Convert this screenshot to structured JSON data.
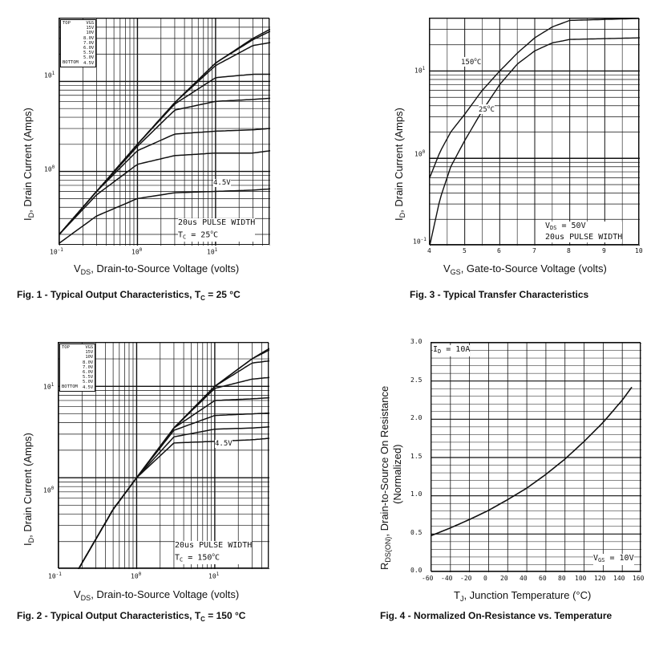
{
  "figures": {
    "fig1": {
      "caption_pre": "Fig. 1 - Typical Output Characteristics, T",
      "caption_sub": "C",
      "caption_post": " = 25 °C",
      "x_label_pre": "V",
      "x_label_sub": "DS",
      "x_label_post": ", Drain-to-Source Voltage (volts)",
      "y_label_pre": "I",
      "y_label_sub": "D",
      "y_label_post": ", Drain Current (Amps)",
      "pulse_note": "20us PULSE WIDTH",
      "tc_pre": "T",
      "tc_sub": "C",
      "tc_post": " = 25",
      "tc_sup": "o",
      "tc_unit": "C",
      "curve_label": "4.5V"
    },
    "fig2": {
      "caption_pre": "Fig. 2 - Typical Output Characteristics, T",
      "caption_sub": "C",
      "caption_post": " = 150 °C",
      "x_label_pre": "V",
      "x_label_sub": "DS",
      "x_label_post": ", Drain-to-Source Voltage (volts)",
      "y_label_pre": "I",
      "y_label_sub": "D",
      "y_label_post": ", Drain Current (Amps)",
      "pulse_note": "20us PULSE WIDTH",
      "tc_pre": "T",
      "tc_sub": "C",
      "tc_post": " = 150",
      "tc_sup": "o",
      "tc_unit": "C",
      "curve_label": "4.5V"
    },
    "fig3": {
      "caption": "Fig. 3 - Typical Transfer Characteristics",
      "x_label_pre": "V",
      "x_label_sub": "GS",
      "x_label_post": ", Gate-to-Source Voltage (volts)",
      "y_label_pre": "I",
      "y_label_sub": "D",
      "y_label_post": ", Drain Current (Amps)",
      "vds_pre": "V",
      "vds_sub": "DS",
      "vds_post": " = 50V",
      "pulse_note": "20us PULSE WIDTH",
      "label_150_pre": "150",
      "label_150_sup": "o",
      "label_150_unit": "C",
      "label_25_pre": "25",
      "label_25_sup": "o",
      "label_25_unit": "C"
    },
    "fig4": {
      "caption": "Fig. 4 - Normalized On-Resistance vs. Temperature",
      "x_label_pre": "T",
      "x_label_sub": "J",
      "x_label_post": ", Junction Temperature (°C)",
      "y_label_pre": "R",
      "y_label_sub": "DS(ON)",
      "y_label_post": ", Drain-to-Source On Resistance",
      "y_label_line2": "(Normalized)",
      "id_pre": "I",
      "id_sub": "D",
      "id_post": " = 10A",
      "vgs_pre": "V",
      "vgs_sub": "GS",
      "vgs_post": " = 10V"
    }
  },
  "legend": {
    "header": "VGS",
    "top": "TOP",
    "bottom": "BOTTOM",
    "values": [
      "15V",
      "10V",
      "8.0V",
      "7.0V",
      "6.0V",
      "5.5V",
      "5.0V",
      "4.5V"
    ]
  },
  "ticks": {
    "log_x": [
      {
        "base": "10",
        "exp": "-1"
      },
      {
        "base": "10",
        "exp": "0"
      },
      {
        "base": "10",
        "exp": "1"
      }
    ],
    "log_y": [
      {
        "base": "10",
        "exp": "0"
      },
      {
        "base": "10",
        "exp": "1"
      }
    ],
    "fig3_y": [
      {
        "base": "10",
        "exp": "-1"
      },
      {
        "base": "10",
        "exp": "0"
      },
      {
        "base": "10",
        "exp": "1"
      }
    ],
    "fig3_x": [
      "4",
      "5",
      "6",
      "7",
      "8",
      "9",
      "10"
    ],
    "fig4_x": [
      "-60",
      "-40",
      "-20",
      "0",
      "20",
      "40",
      "60",
      "80",
      "100",
      "120",
      "140",
      "160"
    ],
    "fig4_y": [
      "0.0",
      "0.5",
      "1.0",
      "1.5",
      "2.0",
      "2.5",
      "3.0"
    ]
  },
  "chart_data": [
    {
      "type": "line",
      "title": "Fig. 1 - Typical Output Characteristics, TC = 25 °C",
      "xlabel": "VDS, Drain-to-Source Voltage (volts)",
      "ylabel": "ID, Drain Current (Amps)",
      "xscale": "log",
      "yscale": "log",
      "xlim": [
        0.1,
        50
      ],
      "ylim": [
        0.15,
        50
      ],
      "series": [
        {
          "name": "15V",
          "x": [
            0.1,
            0.3,
            1,
            3,
            10,
            30,
            50
          ],
          "y": [
            0.2,
            0.6,
            2.0,
            5.8,
            16,
            30,
            38
          ]
        },
        {
          "name": "10V",
          "x": [
            0.1,
            0.3,
            1,
            3,
            10,
            30,
            50
          ],
          "y": [
            0.2,
            0.6,
            2.0,
            5.8,
            16,
            29,
            36
          ]
        },
        {
          "name": "8.0V",
          "x": [
            0.1,
            0.3,
            1,
            3,
            10,
            30,
            50
          ],
          "y": [
            0.2,
            0.6,
            2.0,
            5.8,
            15,
            25,
            27
          ]
        },
        {
          "name": "7.0V",
          "x": [
            0.1,
            0.3,
            1,
            3,
            10,
            30,
            50
          ],
          "y": [
            0.2,
            0.6,
            2.0,
            5.6,
            11,
            12,
            12
          ]
        },
        {
          "name": "6.0V",
          "x": [
            0.1,
            0.3,
            1,
            3,
            10,
            30,
            50
          ],
          "y": [
            0.2,
            0.6,
            1.9,
            4.8,
            6.0,
            6.3,
            6.5
          ]
        },
        {
          "name": "5.5V",
          "x": [
            0.1,
            0.3,
            1,
            3,
            10,
            30,
            50
          ],
          "y": [
            0.2,
            0.6,
            1.7,
            2.6,
            2.8,
            2.9,
            3.0
          ]
        },
        {
          "name": "5.0V",
          "x": [
            0.1,
            0.3,
            1,
            3,
            10,
            30,
            50
          ],
          "y": [
            0.2,
            0.55,
            1.2,
            1.5,
            1.6,
            1.6,
            1.7
          ]
        },
        {
          "name": "4.5V",
          "x": [
            0.1,
            0.3,
            1,
            3,
            10,
            30,
            50
          ],
          "y": [
            0.16,
            0.32,
            0.5,
            0.58,
            0.6,
            0.62,
            0.64
          ]
        }
      ]
    },
    {
      "type": "line",
      "title": "Fig. 2 - Typical Output Characteristics, TC = 150 °C",
      "xlabel": "VDS, Drain-to-Source Voltage (volts)",
      "ylabel": "ID, Drain Current (Amps)",
      "xscale": "log",
      "yscale": "log",
      "xlim": [
        0.1,
        50
      ],
      "ylim": [
        0.1,
        30
      ],
      "series": [
        {
          "name": "15V",
          "x": [
            0.18,
            0.5,
            1,
            3,
            10,
            30,
            50
          ],
          "y": [
            0.1,
            0.45,
            1.0,
            3.5,
            10,
            20,
            26
          ]
        },
        {
          "name": "10V",
          "x": [
            0.18,
            0.5,
            1,
            3,
            10,
            30,
            50
          ],
          "y": [
            0.1,
            0.45,
            1.0,
            3.5,
            10,
            20,
            25
          ]
        },
        {
          "name": "8.0V",
          "x": [
            0.18,
            0.5,
            1,
            3,
            10,
            30,
            50
          ],
          "y": [
            0.1,
            0.45,
            1.0,
            3.5,
            10,
            18,
            19
          ]
        },
        {
          "name": "7.0V",
          "x": [
            0.18,
            0.5,
            1,
            3,
            10,
            30,
            50
          ],
          "y": [
            0.1,
            0.45,
            1.0,
            3.5,
            9.5,
            12,
            12.5
          ]
        },
        {
          "name": "6.0V",
          "x": [
            0.18,
            0.5,
            1,
            3,
            10,
            30,
            50
          ],
          "y": [
            0.1,
            0.45,
            1.0,
            3.5,
            7.0,
            7.3,
            7.5
          ]
        },
        {
          "name": "5.5V",
          "x": [
            0.18,
            0.5,
            1,
            3,
            10,
            30,
            50
          ],
          "y": [
            0.1,
            0.45,
            1.0,
            3.3,
            4.8,
            5.0,
            5.1
          ]
        },
        {
          "name": "5.0V",
          "x": [
            0.18,
            0.5,
            1,
            3,
            10,
            30,
            50
          ],
          "y": [
            0.1,
            0.45,
            1.0,
            2.8,
            3.4,
            3.5,
            3.6
          ]
        },
        {
          "name": "4.5V",
          "x": [
            0.18,
            0.5,
            1,
            3,
            10,
            30,
            50
          ],
          "y": [
            0.1,
            0.45,
            1.0,
            2.4,
            2.5,
            2.6,
            2.7
          ]
        }
      ]
    },
    {
      "type": "line",
      "title": "Fig. 3 - Typical Transfer Characteristics",
      "xlabel": "VGS, Gate-to-Source Voltage (volts)",
      "ylabel": "ID, Drain Current (Amps)",
      "xscale": "linear",
      "yscale": "log",
      "xlim": [
        4,
        10
      ],
      "ylim": [
        0.1,
        40
      ],
      "series": [
        {
          "name": "150°C",
          "x": [
            4,
            4.3,
            4.6,
            5,
            5.5,
            6,
            6.5,
            7,
            7.5,
            8,
            10
          ],
          "y": [
            0.6,
            1.2,
            2.0,
            3.2,
            6.0,
            10,
            16,
            24,
            32,
            38,
            40
          ]
        },
        {
          "name": "25°C",
          "x": [
            4,
            4.3,
            4.6,
            5,
            5.5,
            6,
            6.5,
            7,
            7.5,
            8,
            10
          ],
          "y": [
            0.1,
            0.35,
            0.8,
            1.6,
            3.5,
            7.0,
            12,
            17,
            21,
            23,
            24
          ]
        }
      ]
    },
    {
      "type": "line",
      "title": "Fig. 4 - Normalized On-Resistance vs. Temperature",
      "xlabel": "TJ, Junction Temperature (°C)",
      "ylabel": "RDS(ON), Drain-to-Source On Resistance (Normalized)",
      "xscale": "linear",
      "yscale": "linear",
      "xlim": [
        -60,
        160
      ],
      "ylim": [
        0,
        3.0
      ],
      "series": [
        {
          "name": "ID = 10A, VGS = 10V",
          "x": [
            -60,
            -40,
            -20,
            0,
            20,
            40,
            60,
            80,
            100,
            120,
            140,
            150
          ],
          "y": [
            0.48,
            0.58,
            0.69,
            0.81,
            0.95,
            1.1,
            1.28,
            1.48,
            1.71,
            1.96,
            2.25,
            2.42
          ]
        }
      ]
    }
  ]
}
